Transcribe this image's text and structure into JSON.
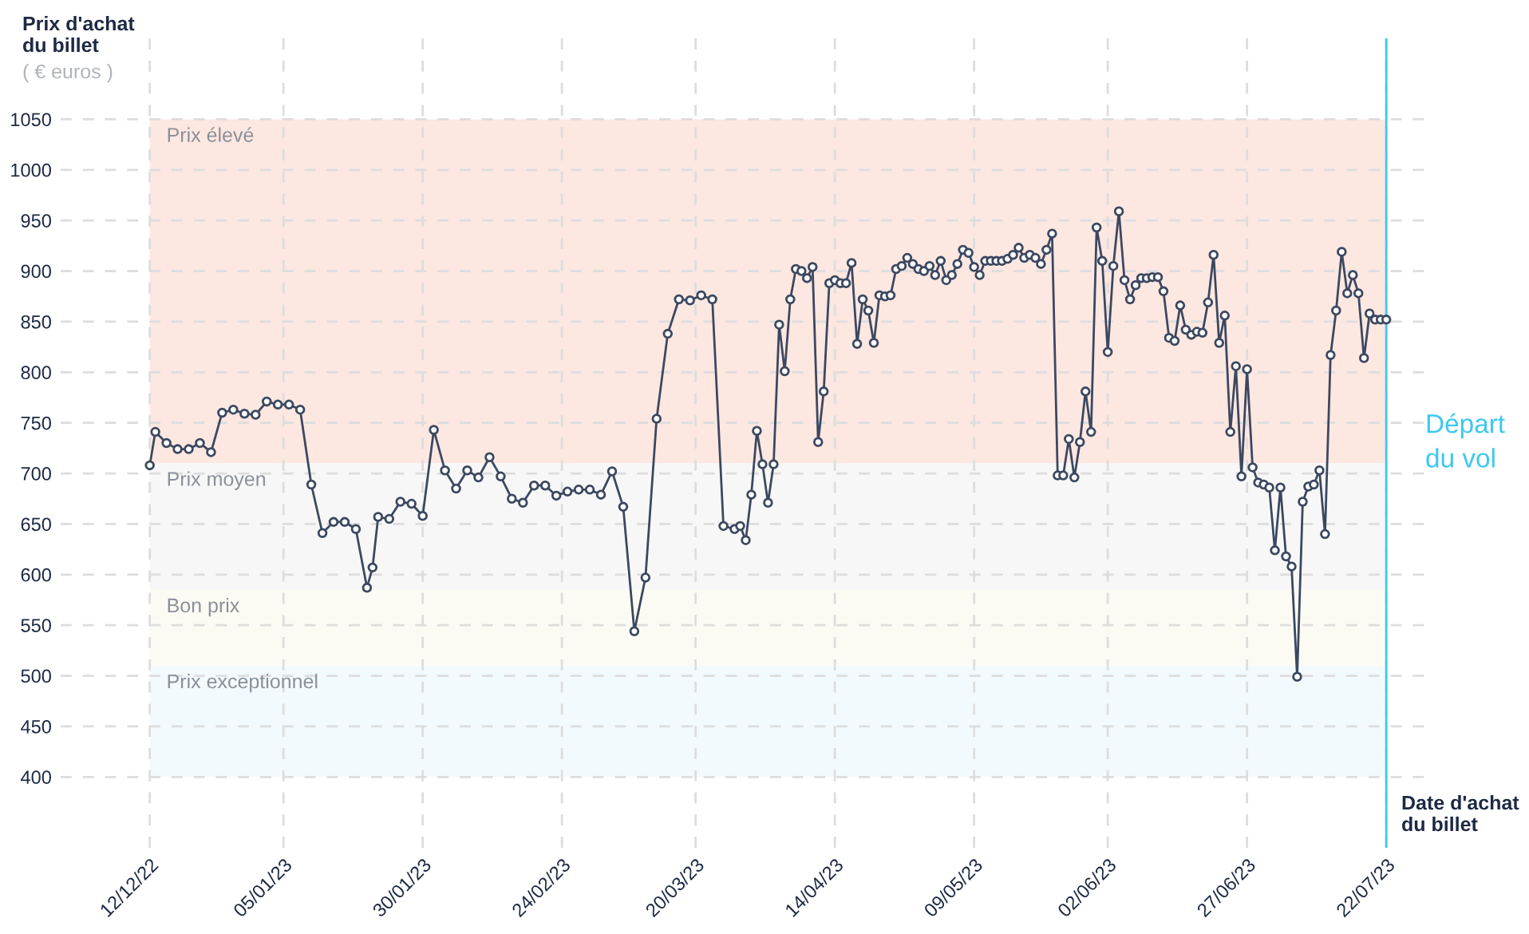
{
  "chart_data": {
    "type": "line",
    "xlabel": "Date d'achat du billet",
    "ylabel": "Prix d'achat du billet",
    "annotations": [
      "( € euros )"
    ],
    "x": [
      "2022-12-12",
      "2022-12-13",
      "2022-12-15",
      "2022-12-17",
      "2022-12-19",
      "2022-12-21",
      "2022-12-23",
      "2022-12-25",
      "2022-12-27",
      "2022-12-29",
      "2022-12-31",
      "2023-01-02",
      "2023-01-04",
      "2023-01-06",
      "2023-01-08",
      "2023-01-10",
      "2023-01-12",
      "2023-01-14",
      "2023-01-16",
      "2023-01-18",
      "2023-01-20",
      "2023-01-21",
      "2023-01-22",
      "2023-01-24",
      "2023-01-26",
      "2023-01-28",
      "2023-01-30",
      "2023-02-01",
      "2023-02-03",
      "2023-02-05",
      "2023-02-07",
      "2023-02-09",
      "2023-02-11",
      "2023-02-13",
      "2023-02-15",
      "2023-02-17",
      "2023-02-19",
      "2023-02-21",
      "2023-02-23",
      "2023-02-25",
      "2023-02-27",
      "2023-03-01",
      "2023-03-03",
      "2023-03-05",
      "2023-03-07",
      "2023-03-09",
      "2023-03-11",
      "2023-03-13",
      "2023-03-15",
      "2023-03-17",
      "2023-03-19",
      "2023-03-21",
      "2023-03-23",
      "2023-03-25",
      "2023-03-27",
      "2023-03-28",
      "2023-03-29",
      "2023-03-30",
      "2023-03-31",
      "2023-04-01",
      "2023-04-02",
      "2023-04-03",
      "2023-04-04",
      "2023-04-05",
      "2023-04-06",
      "2023-04-07",
      "2023-04-08",
      "2023-04-09",
      "2023-04-10",
      "2023-04-11",
      "2023-04-12",
      "2023-04-13",
      "2023-04-14",
      "2023-04-15",
      "2023-04-16",
      "2023-04-17",
      "2023-04-18",
      "2023-04-19",
      "2023-04-20",
      "2023-04-21",
      "2023-04-22",
      "2023-04-23",
      "2023-04-24",
      "2023-04-25",
      "2023-04-26",
      "2023-04-27",
      "2023-04-28",
      "2023-04-29",
      "2023-04-30",
      "2023-05-01",
      "2023-05-02",
      "2023-05-03",
      "2023-05-04",
      "2023-05-05",
      "2023-05-06",
      "2023-05-07",
      "2023-05-08",
      "2023-05-09",
      "2023-05-10",
      "2023-05-11",
      "2023-05-12",
      "2023-05-13",
      "2023-05-14",
      "2023-05-15",
      "2023-05-16",
      "2023-05-17",
      "2023-05-18",
      "2023-05-19",
      "2023-05-20",
      "2023-05-21",
      "2023-05-22",
      "2023-05-23",
      "2023-05-24",
      "2023-05-25",
      "2023-05-26",
      "2023-05-27",
      "2023-05-28",
      "2023-05-29",
      "2023-05-30",
      "2023-05-31",
      "2023-06-01",
      "2023-06-02",
      "2023-06-03",
      "2023-06-04",
      "2023-06-05",
      "2023-06-06",
      "2023-06-07",
      "2023-06-08",
      "2023-06-09",
      "2023-06-10",
      "2023-06-11",
      "2023-06-12",
      "2023-06-13",
      "2023-06-14",
      "2023-06-15",
      "2023-06-16",
      "2023-06-17",
      "2023-06-18",
      "2023-06-19",
      "2023-06-20",
      "2023-06-21",
      "2023-06-22",
      "2023-06-23",
      "2023-06-24",
      "2023-06-25",
      "2023-06-26",
      "2023-06-27",
      "2023-06-28",
      "2023-06-29",
      "2023-06-30",
      "2023-07-01",
      "2023-07-02",
      "2023-07-03",
      "2023-07-04",
      "2023-07-05",
      "2023-07-06",
      "2023-07-07",
      "2023-07-08",
      "2023-07-09",
      "2023-07-10",
      "2023-07-11",
      "2023-07-12",
      "2023-07-13",
      "2023-07-14",
      "2023-07-15",
      "2023-07-16",
      "2023-07-17",
      "2023-07-18",
      "2023-07-19",
      "2023-07-20",
      "2023-07-21",
      "2023-07-22"
    ],
    "series": [
      {
        "color": "#3b4860",
        "values": [
          708,
          741,
          730,
          724,
          724,
          730,
          721,
          760,
          763,
          759,
          758,
          771,
          768,
          768,
          763,
          689,
          641,
          652,
          652,
          645,
          587,
          607,
          657,
          655,
          672,
          670,
          658,
          743,
          703,
          685,
          703,
          696,
          716,
          697,
          675,
          671,
          688,
          688,
          678,
          682,
          684,
          684,
          679,
          702,
          667,
          544,
          597,
          754,
          838,
          872,
          871,
          876,
          872,
          648,
          645,
          648,
          634,
          679,
          742,
          709,
          671,
          709,
          847,
          801,
          872,
          902,
          900,
          893,
          904,
          731,
          781,
          888,
          891,
          888,
          888,
          908,
          828,
          872,
          861,
          829,
          876,
          875,
          876,
          902,
          905,
          913,
          907,
          902,
          900,
          905,
          896,
          910,
          891,
          896,
          907,
          921,
          918,
          904,
          896,
          910,
          910,
          910,
          910,
          912,
          916,
          923,
          913,
          916,
          913,
          907,
          921,
          937,
          698,
          698,
          734,
          696,
          731,
          781,
          741,
          943,
          910,
          820,
          905,
          959,
          891,
          872,
          886,
          893,
          893,
          894,
          894,
          880,
          834,
          831,
          866,
          842,
          837,
          840,
          839,
          869,
          916,
          829,
          856,
          741,
          806,
          697,
          803,
          706,
          691,
          689,
          686,
          624,
          686,
          618,
          608,
          499,
          672,
          687,
          689,
          703,
          640,
          817,
          861,
          919,
          878,
          896,
          878,
          814,
          858,
          852,
          852,
          852
        ]
      }
    ],
    "marker": "circle",
    "line_style": "solid",
    "grid": true,
    "legend": false,
    "xlim": [
      "2022-11-26",
      "2023-07-29"
    ],
    "xticks": [
      {
        "value": "2022-12-12",
        "label": "12/12/22"
      },
      {
        "value": "2023-01-05",
        "label": "05/01/23"
      },
      {
        "value": "2023-01-30",
        "label": "30/01/23"
      },
      {
        "value": "2023-02-24",
        "label": "24/02/23"
      },
      {
        "value": "2023-03-20",
        "label": "20/03/23"
      },
      {
        "value": "2023-04-14",
        "label": "14/04/23"
      },
      {
        "value": "2023-05-09",
        "label": "09/05/23"
      },
      {
        "value": "2023-06-02",
        "label": "02/06/23"
      },
      {
        "value": "2023-06-27",
        "label": "27/06/23"
      },
      {
        "value": "2023-07-22",
        "label": "22/07/23"
      }
    ],
    "ylim": [
      330,
      1130
    ],
    "yticks": [
      400,
      450,
      500,
      550,
      600,
      650,
      700,
      750,
      800,
      850,
      900,
      950,
      1000,
      1050
    ],
    "bands": [
      {
        "axis": "y",
        "from": 710,
        "to": 1050,
        "label": "Prix élevé",
        "color": "#fde7e1"
      },
      {
        "axis": "y",
        "from": 585,
        "to": 710,
        "label": "Prix moyen",
        "color": "#f7f7f7"
      },
      {
        "axis": "y",
        "from": 510,
        "to": 585,
        "label": "Bon prix",
        "color": "#fbfbf3"
      },
      {
        "axis": "y",
        "from": 400,
        "to": 510,
        "label": "Prix exceptionnel",
        "color": "#f3fafd"
      }
    ],
    "ref_lines": [
      {
        "axis": "x",
        "value": "2023-07-22",
        "label": "Départ du vol",
        "color": "#3cc8f0",
        "line_style": "solid"
      }
    ]
  }
}
